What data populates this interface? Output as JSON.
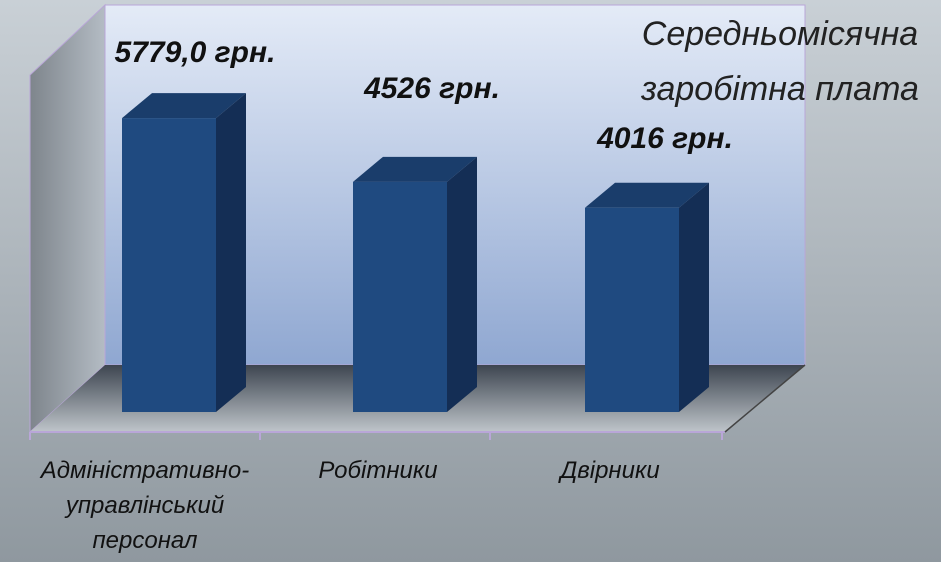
{
  "chart_data": {
    "type": "bar3d",
    "title": "Середньомісячна\nзаробітна плата",
    "categories": [
      "Адміністративно-\nуправлінський\nперсонал",
      "Робітники",
      "Двірники"
    ],
    "values": [
      5779,
      4526,
      4016
    ],
    "value_labels": [
      "5779,0 грн.",
      "4526 грн.",
      "4016 грн."
    ],
    "color": "#1f4a80",
    "ylim": [
      0,
      7000
    ]
  }
}
